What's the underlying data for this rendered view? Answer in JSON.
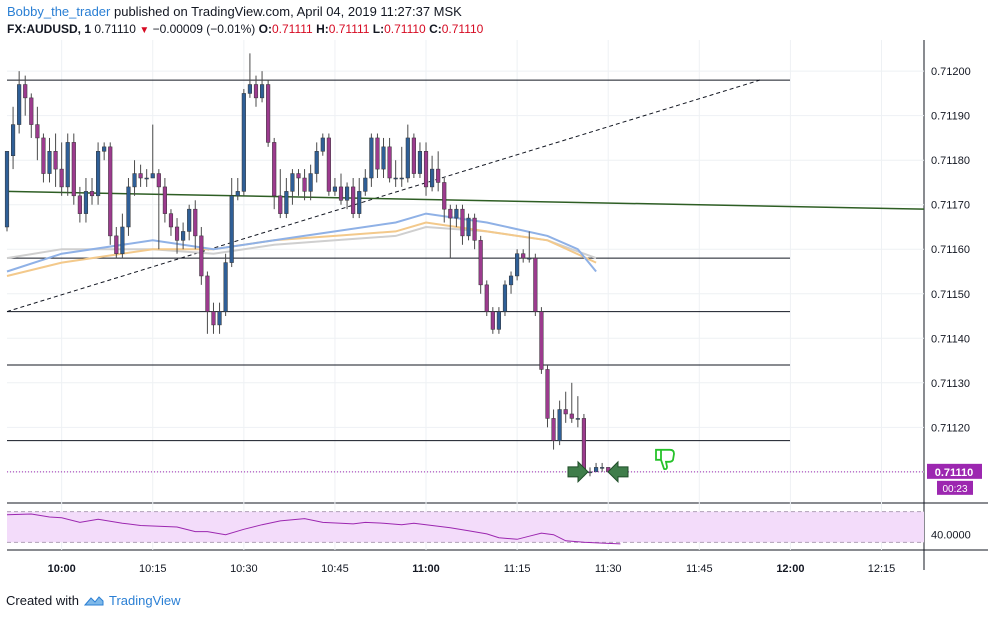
{
  "header": {
    "author": "Bobby_the_trader",
    "published": "published on TradingView.com, April 04, 2019 11:27:37 MSK",
    "symbol": "FX:AUDUSD, 1",
    "last": "0.71110",
    "change": "−0.00009 (−0.01%)",
    "o_label": "O:",
    "o_value": "0.71111",
    "h_label": "H:",
    "h_value": "0.71111",
    "l_label": "L:",
    "l_value": "0.71110",
    "c_label": "C:",
    "c_value": "0.71110"
  },
  "footer": {
    "created_with": "Created with",
    "brand": "TradingView"
  },
  "price_badge": {
    "value": "0.71110",
    "countdown": "00:23",
    "color": "#9c27b0"
  },
  "colors": {
    "up": "#2f5f97",
    "down": "#9c3b8e",
    "trend": "#2e5e24",
    "ma_blue": "#8fb1e6",
    "ma_orange": "#f3c98b",
    "ma_gray": "#cfcfcf",
    "rsi_band": "#f3dcfa",
    "rsi_line": "#9c27b0"
  },
  "icons": [
    "thumbs-down-icon",
    "arrow-right-icon",
    "arrow-left-icon",
    "tradingview-logo-icon"
  ],
  "chart_data": [
    {
      "type": "candlestick",
      "title": "FX:AUDUSD, 1",
      "x_ticks": [
        "10:00",
        "10:15",
        "10:30",
        "10:45",
        "11:00",
        "11:15",
        "11:30",
        "11:45",
        "12:00",
        "12:15"
      ],
      "y_ticks": [
        "0.71200",
        "0.71190",
        "0.71180",
        "0.71170",
        "0.71160",
        "0.71150",
        "0.71140",
        "0.71130",
        "0.71120",
        "0.71110"
      ],
      "ylim": [
        0.71103,
        0.71207
      ],
      "x_range_minutes": [
        -9,
        142
      ],
      "grid": true,
      "candles_minutes_offset_from_10_00": -9,
      "candles": [
        [
          0.71165,
          0.71182,
          0.71181,
          0.71164
        ],
        [
          0.71181,
          0.71188,
          0.71192,
          0.71178
        ],
        [
          0.71188,
          0.71197,
          0.712,
          0.71186
        ],
        [
          0.71197,
          0.71194,
          0.71199,
          0.7119
        ],
        [
          0.71194,
          0.71188,
          0.71195,
          0.71185
        ],
        [
          0.71188,
          0.71185,
          0.71192,
          0.7118
        ],
        [
          0.71185,
          0.71177,
          0.71186,
          0.71175
        ],
        [
          0.71177,
          0.71182,
          0.71185,
          0.71175
        ],
        [
          0.71182,
          0.71178,
          0.71186,
          0.71174
        ],
        [
          0.71178,
          0.71174,
          0.71184,
          0.71172
        ],
        [
          0.71174,
          0.71184,
          0.71186,
          0.71172
        ],
        [
          0.71184,
          0.71172,
          0.71186,
          0.7117
        ],
        [
          0.71172,
          0.71168,
          0.71174,
          0.71166
        ],
        [
          0.71168,
          0.71173,
          0.71176,
          0.71166
        ],
        [
          0.71173,
          0.71172,
          0.71176,
          0.7117
        ],
        [
          0.71172,
          0.71182,
          0.71184,
          0.7117
        ],
        [
          0.71182,
          0.71183,
          0.71184,
          0.7118
        ],
        [
          0.71183,
          0.71163,
          0.71184,
          0.71161
        ],
        [
          0.71163,
          0.71159,
          0.71165,
          0.71158
        ],
        [
          0.71159,
          0.71165,
          0.71168,
          0.71158
        ],
        [
          0.71165,
          0.71174,
          0.71176,
          0.71163
        ],
        [
          0.71174,
          0.71177,
          0.7118,
          0.71172
        ],
        [
          0.71177,
          0.71176,
          0.71179,
          0.71174
        ],
        [
          0.71176,
          0.71176,
          0.71178,
          0.71174
        ],
        [
          0.71176,
          0.71177,
          0.71188,
          0.71176
        ],
        [
          0.71177,
          0.71174,
          0.71178,
          0.7116
        ],
        [
          0.71174,
          0.71168,
          0.71176,
          0.71166
        ],
        [
          0.71168,
          0.71165,
          0.71169,
          0.71163
        ],
        [
          0.71165,
          0.71162,
          0.71167,
          0.71159
        ],
        [
          0.71162,
          0.71164,
          0.71166,
          0.7116
        ],
        [
          0.71164,
          0.71169,
          0.7117,
          0.71162
        ],
        [
          0.71169,
          0.71163,
          0.71171,
          0.7116
        ],
        [
          0.71163,
          0.71154,
          0.71165,
          0.71152
        ],
        [
          0.71154,
          0.71146,
          0.71155,
          0.71141
        ],
        [
          0.71146,
          0.71143,
          0.71148,
          0.71141
        ],
        [
          0.71143,
          0.71146,
          0.71148,
          0.71141
        ],
        [
          0.71146,
          0.71157,
          0.71159,
          0.71145
        ],
        [
          0.71157,
          0.71172,
          0.71176,
          0.71156
        ],
        [
          0.71172,
          0.71173,
          0.71176,
          0.71171
        ],
        [
          0.71173,
          0.71195,
          0.71196,
          0.71172
        ],
        [
          0.71195,
          0.71197,
          0.71204,
          0.71194
        ],
        [
          0.71197,
          0.71194,
          0.71199,
          0.71192
        ],
        [
          0.71194,
          0.71197,
          0.712,
          0.71193
        ],
        [
          0.71197,
          0.71184,
          0.71198,
          0.71183
        ],
        [
          0.71184,
          0.71172,
          0.71185,
          0.71169
        ],
        [
          0.71172,
          0.71168,
          0.71178,
          0.71167
        ],
        [
          0.71168,
          0.71173,
          0.71176,
          0.71167
        ],
        [
          0.71173,
          0.71177,
          0.71178,
          0.7117
        ],
        [
          0.71177,
          0.71176,
          0.71178,
          0.71172
        ],
        [
          0.71176,
          0.71173,
          0.71178,
          0.71171
        ],
        [
          0.71173,
          0.71177,
          0.71179,
          0.71171
        ],
        [
          0.71177,
          0.71182,
          0.71184,
          0.71175
        ],
        [
          0.71182,
          0.71185,
          0.71186,
          0.71181
        ],
        [
          0.71185,
          0.71173,
          0.71186,
          0.71172
        ],
        [
          0.71173,
          0.71174,
          0.71176,
          0.71172
        ],
        [
          0.71174,
          0.71171,
          0.71177,
          0.7117
        ],
        [
          0.71171,
          0.71174,
          0.71175,
          0.71169
        ],
        [
          0.71174,
          0.71168,
          0.71176,
          0.71167
        ],
        [
          0.71168,
          0.71173,
          0.71176,
          0.71167
        ],
        [
          0.71173,
          0.71176,
          0.71178,
          0.71172
        ],
        [
          0.71176,
          0.71185,
          0.71186,
          0.71174
        ],
        [
          0.71185,
          0.71178,
          0.71186,
          0.71176
        ],
        [
          0.71178,
          0.71183,
          0.71185,
          0.71176
        ],
        [
          0.71183,
          0.71176,
          0.71185,
          0.71175
        ],
        [
          0.71176,
          0.71176,
          0.7118,
          0.71174
        ],
        [
          0.71176,
          0.71176,
          0.71183,
          0.71174
        ],
        [
          0.71176,
          0.71185,
          0.71188,
          0.71175
        ],
        [
          0.71185,
          0.71177,
          0.71186,
          0.71176
        ],
        [
          0.71177,
          0.71182,
          0.71184,
          0.71176
        ],
        [
          0.71182,
          0.71174,
          0.71184,
          0.71172
        ],
        [
          0.71174,
          0.71178,
          0.71181,
          0.71173
        ],
        [
          0.71178,
          0.71175,
          0.71182,
          0.71173
        ],
        [
          0.71175,
          0.71169,
          0.71176,
          0.71166
        ],
        [
          0.71169,
          0.71167,
          0.7117,
          0.71158
        ],
        [
          0.71167,
          0.71169,
          0.7117,
          0.71165
        ],
        [
          0.71169,
          0.71163,
          0.7117,
          0.71161
        ],
        [
          0.71163,
          0.71167,
          0.71168,
          0.71162
        ],
        [
          0.71167,
          0.71162,
          0.71168,
          0.7116
        ],
        [
          0.71162,
          0.71152,
          0.71163,
          0.7115
        ],
        [
          0.71152,
          0.71146,
          0.71153,
          0.71145
        ],
        [
          0.71146,
          0.71142,
          0.71147,
          0.71141
        ],
        [
          0.71142,
          0.71146,
          0.71147,
          0.71141
        ],
        [
          0.71146,
          0.71152,
          0.71153,
          0.71145
        ],
        [
          0.71152,
          0.71154,
          0.71155,
          0.7115
        ],
        [
          0.71154,
          0.71159,
          0.7116,
          0.71153
        ],
        [
          0.71159,
          0.71158,
          0.7116,
          0.71157
        ],
        [
          0.71158,
          0.71158,
          0.71164,
          0.71157
        ],
        [
          0.71158,
          0.71146,
          0.71159,
          0.71145
        ],
        [
          0.71146,
          0.71133,
          0.71147,
          0.71132
        ],
        [
          0.71133,
          0.71122,
          0.71134,
          0.7112
        ],
        [
          0.71122,
          0.71117,
          0.71124,
          0.71115
        ],
        [
          0.71117,
          0.71124,
          0.71126,
          0.71116
        ],
        [
          0.71124,
          0.71123,
          0.71128,
          0.71121
        ],
        [
          0.71123,
          0.71122,
          0.7113,
          0.71121
        ],
        [
          0.71122,
          0.71122,
          0.71127,
          0.7112
        ],
        [
          0.71122,
          0.7111,
          0.71123,
          0.71109
        ],
        [
          0.7111,
          0.7111,
          0.71111,
          0.71109
        ],
        [
          0.7111,
          0.71111,
          0.71112,
          0.7111
        ],
        [
          0.71111,
          0.71111,
          0.71112,
          0.7111
        ],
        [
          0.71111,
          0.7111,
          0.71111,
          0.7111
        ]
      ],
      "horizontal_levels": [
        0.71198,
        0.71158,
        0.71146,
        0.71134,
        0.71117
      ],
      "current_price_line": 0.7111,
      "trendline_green": {
        "from": [
          -9,
          0.71173
        ],
        "to": [
          142,
          0.71169
        ]
      },
      "trendline_dashed": {
        "from": [
          -9,
          0.71146
        ],
        "to": [
          115,
          0.71198
        ]
      },
      "ma_blue": [
        [
          -9,
          0.71155
        ],
        [
          0,
          0.71159
        ],
        [
          15,
          0.71162
        ],
        [
          25,
          0.7116
        ],
        [
          35,
          0.71162
        ],
        [
          45,
          0.71164
        ],
        [
          55,
          0.71166
        ],
        [
          60,
          0.71168
        ],
        [
          70,
          0.71166
        ],
        [
          80,
          0.71163
        ],
        [
          85,
          0.7116
        ],
        [
          88,
          0.71155
        ]
      ],
      "ma_orange": [
        [
          -9,
          0.71154
        ],
        [
          0,
          0.71157
        ],
        [
          15,
          0.7116
        ],
        [
          25,
          0.7116
        ],
        [
          35,
          0.71162
        ],
        [
          45,
          0.71163
        ],
        [
          55,
          0.71164
        ],
        [
          60,
          0.71166
        ],
        [
          70,
          0.71164
        ],
        [
          80,
          0.71162
        ],
        [
          88,
          0.71157
        ]
      ],
      "ma_gray": [
        [
          -9,
          0.71158
        ],
        [
          0,
          0.7116
        ],
        [
          15,
          0.7116
        ],
        [
          25,
          0.71159
        ],
        [
          35,
          0.71161
        ],
        [
          45,
          0.71162
        ],
        [
          55,
          0.71163
        ],
        [
          60,
          0.71165
        ],
        [
          70,
          0.71164
        ],
        [
          80,
          0.71162
        ],
        [
          88,
          0.71158
        ]
      ]
    },
    {
      "type": "line",
      "title": "RSI",
      "y_ticks": [
        "40.0000"
      ],
      "ylim": [
        20,
        80
      ],
      "band": [
        30,
        70
      ],
      "values": [
        [
          -9,
          66
        ],
        [
          -5,
          67
        ],
        [
          -2,
          63
        ],
        [
          0,
          62
        ],
        [
          3,
          56
        ],
        [
          6,
          60
        ],
        [
          10,
          55
        ],
        [
          13,
          52
        ],
        [
          16,
          51
        ],
        [
          19,
          50
        ],
        [
          22,
          44
        ],
        [
          24,
          44
        ],
        [
          27,
          40
        ],
        [
          30,
          47
        ],
        [
          33,
          53
        ],
        [
          36,
          58
        ],
        [
          40,
          61
        ],
        [
          43,
          56
        ],
        [
          46,
          55
        ],
        [
          48,
          54
        ],
        [
          50,
          56
        ],
        [
          53,
          55
        ],
        [
          56,
          53
        ],
        [
          58,
          55
        ],
        [
          61,
          52
        ],
        [
          64,
          49
        ],
        [
          67,
          45
        ],
        [
          70,
          41
        ],
        [
          72,
          36
        ],
        [
          75,
          34
        ],
        [
          77,
          38
        ],
        [
          79,
          42
        ],
        [
          81,
          40
        ],
        [
          83,
          32
        ],
        [
          86,
          30
        ],
        [
          89,
          29
        ],
        [
          92,
          28
        ]
      ]
    }
  ]
}
